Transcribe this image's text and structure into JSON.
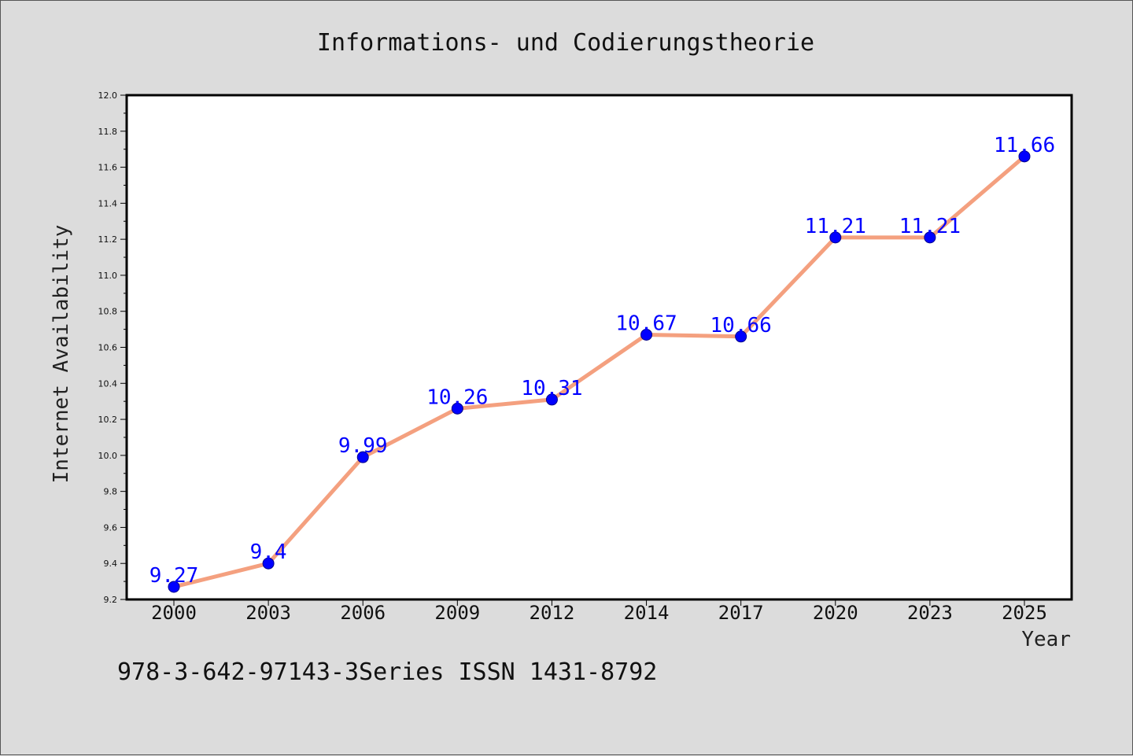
{
  "chart_data": {
    "type": "line",
    "title": "Informations- und Codierungstheorie",
    "xlabel": "Year",
    "ylabel": "Internet Availability",
    "categories": [
      "2000",
      "2003",
      "2006",
      "2009",
      "2012",
      "2014",
      "2017",
      "2020",
      "2023",
      "2025"
    ],
    "values": [
      9.27,
      9.4,
      9.99,
      10.26,
      10.31,
      10.67,
      10.66,
      11.21,
      11.21,
      11.66
    ],
    "data_labels": [
      "9.27",
      "9.4",
      "9.99",
      "10.26",
      "10.31",
      "10.67",
      "10.66",
      "11.21",
      "11.21",
      "11.66"
    ],
    "ylim": [
      9.2,
      12.0
    ],
    "y_ticks": [
      "9.2",
      "9.4",
      "9.6",
      "9.8",
      "10.0",
      "10.2",
      "10.4",
      "10.6",
      "10.8",
      "11.0",
      "11.2",
      "11.4",
      "11.6",
      "11.8",
      "12.0"
    ],
    "grid": false,
    "legend": "none",
    "line_color": "#f4a07f",
    "marker_color": "#0000ff",
    "label_color": "#0000ff"
  },
  "footer": {
    "text": "978-3-642-97143-3Series ISSN 1431-8792"
  }
}
